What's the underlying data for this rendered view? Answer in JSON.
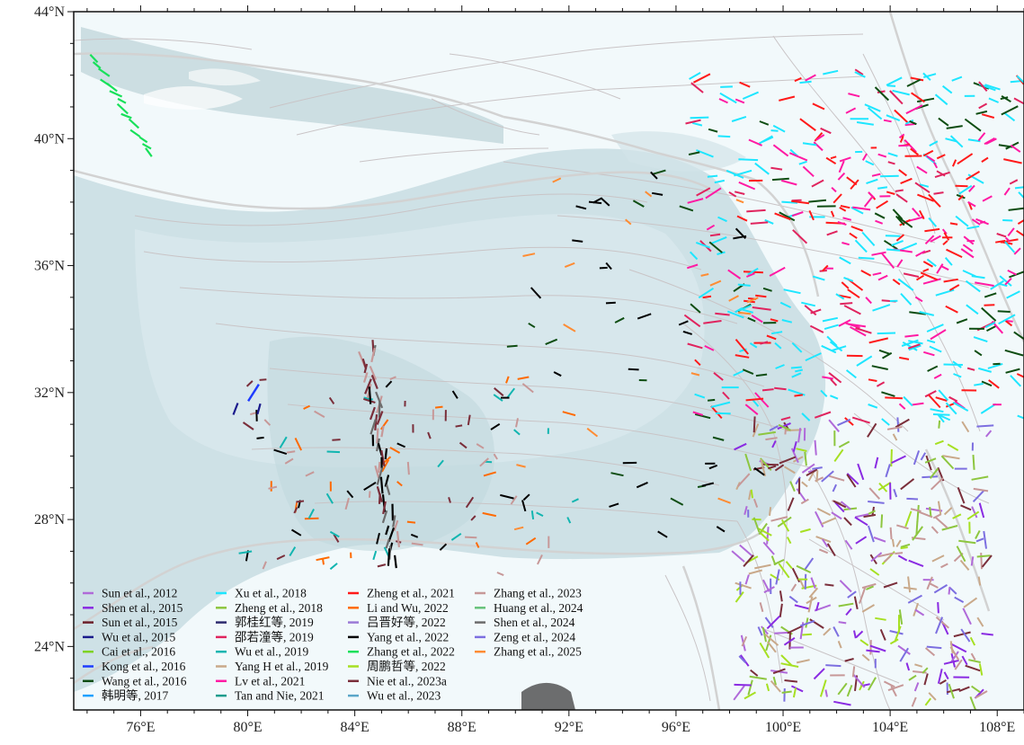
{
  "map": {
    "lon_range": [
      73.5,
      109.0
    ],
    "lat_range": [
      22.0,
      44.0
    ],
    "projection": "equirectangular",
    "background_color": "#f2f9fb",
    "terrain_color": "#c8dde2",
    "fault_color": "#c9c4c6",
    "boundary_color": "#d2d2d2",
    "frame": "black with tick marks on all sides"
  },
  "axes": {
    "x_ticks": [
      {
        "value": 76,
        "label": "76°E"
      },
      {
        "value": 80,
        "label": "80°E"
      },
      {
        "value": 84,
        "label": "84°E"
      },
      {
        "value": 88,
        "label": "88°E"
      },
      {
        "value": 92,
        "label": "92°E"
      },
      {
        "value": 96,
        "label": "96°E"
      },
      {
        "value": 100,
        "label": "100°E"
      },
      {
        "value": 104,
        "label": "104°E"
      },
      {
        "value": 108,
        "label": "108°E"
      }
    ],
    "y_ticks": [
      {
        "value": 44,
        "label": "44°N"
      },
      {
        "value": 40,
        "label": "40°N"
      },
      {
        "value": 36,
        "label": "36°N"
      },
      {
        "value": 32,
        "label": "32°N"
      },
      {
        "value": 28,
        "label": "28°N"
      },
      {
        "value": 24,
        "label": "24°N"
      }
    ]
  },
  "legend": {
    "placement": "bottom-left",
    "entries": [
      {
        "label": "Sun et al., 2012",
        "color": "#b06ad9"
      },
      {
        "label": "Shen et al., 2015",
        "color": "#8a2be2"
      },
      {
        "label": "Sun et al., 2015",
        "color": "#6b1f2a"
      },
      {
        "label": "Wu et al., 2015",
        "color": "#1a1a8c"
      },
      {
        "label": "Cai et al., 2016",
        "color": "#7ed321"
      },
      {
        "label": "Kong et al., 2016",
        "color": "#1e3cff"
      },
      {
        "label": "Wang et al., 2016",
        "color": "#0e4d12"
      },
      {
        "label": "韩明等, 2017",
        "color": "#1ea0ff"
      },
      {
        "label": "Xu et al., 2018",
        "color": "#1ee6ff"
      },
      {
        "label": "Zheng et al., 2018",
        "color": "#8dc63f"
      },
      {
        "label": "郭桂红等, 2019",
        "color": "#2d2a6e"
      },
      {
        "label": "邵若潼等, 2019",
        "color": "#e0245e"
      },
      {
        "label": "Wu et al., 2019",
        "color": "#12b5b0"
      },
      {
        "label": "Yang H et al., 2019",
        "color": "#c9a98a"
      },
      {
        "label": "Lv et al., 2021",
        "color": "#ff1aa3"
      },
      {
        "label": "Tan and Nie, 2021",
        "color": "#1a9c8c"
      },
      {
        "label": "Zheng et al., 2021",
        "color": "#ff1a1a"
      },
      {
        "label": "Li and Wu, 2022",
        "color": "#ff6a00"
      },
      {
        "label": "吕晋好等, 2022",
        "color": "#9b7ad6"
      },
      {
        "label": "Yang et al., 2022",
        "color": "#000000"
      },
      {
        "label": "Zhang et al., 2022",
        "color": "#18e05a"
      },
      {
        "label": "周鹏哲等, 2022",
        "color": "#a6e022"
      },
      {
        "label": "Nie et al., 2023a",
        "color": "#7a2e3a"
      },
      {
        "label": "Wu et al., 2023",
        "color": "#5aa6c8"
      },
      {
        "label": "Zhang et al., 2023",
        "color": "#c79898"
      },
      {
        "label": "Huang et al., 2024",
        "color": "#66c27a"
      },
      {
        "label": "Shen et al., 2024",
        "color": "#6b6b6b"
      },
      {
        "label": "Zeng et al., 2024",
        "color": "#7c6fe0"
      },
      {
        "label": "Zhang et al., 2025",
        "color": "#ff8c33"
      }
    ]
  }
}
